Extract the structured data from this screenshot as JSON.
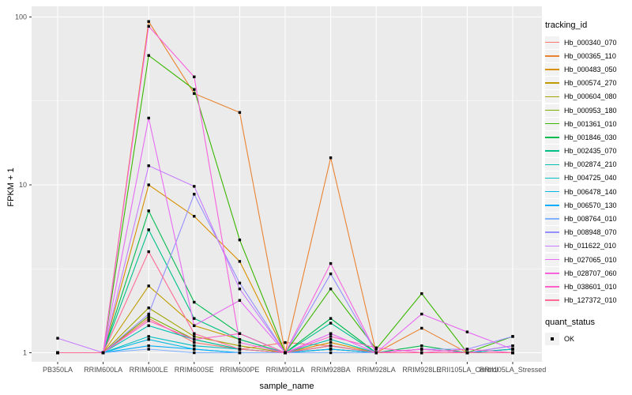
{
  "figure": {
    "y_axis_title": "FPKM + 1",
    "x_axis_title": "sample_name",
    "legend": {
      "tracking_title": "tracking_id",
      "quant_title": "quant_status",
      "quant_items": [
        {
          "label": "OK"
        }
      ]
    }
  },
  "chart_data": {
    "type": "line",
    "title": "",
    "xlabel": "sample_name",
    "ylabel": "FPKM + 1",
    "x_type": "categorical",
    "y_scale": "log10",
    "ylim": [
      0.88,
      116
    ],
    "y_ticks": [
      1,
      10,
      100
    ],
    "y_tick_labels": [
      "1",
      "10",
      "100"
    ],
    "y_minor_ticks": [
      3.162,
      31.62
    ],
    "grid": "on",
    "panel_bg": "#EBEBEB",
    "grid_color": "#FFFFFF",
    "tick_label_color": "#4D4D4D",
    "point_color": "#000000",
    "point_shape": "square",
    "legend_position": "right",
    "categories": [
      "PB350LA",
      "RRIM600LA",
      "RRIM600LE",
      "RRIM600SE",
      "RRIM600PE",
      "RRIM901LA",
      "RRIM928BA",
      "RRIM928LA",
      "RRIM928LE",
      "RRII105LA_Control",
      "RRII105LA_Stressed"
    ],
    "series": [
      {
        "name": "Hb_000340_070",
        "color": "#F8766D",
        "values": [
          1,
          1,
          1.6,
          1.15,
          1.05,
          1.15,
          1.1,
          1,
          1,
          1,
          1.05
        ]
      },
      {
        "name": "Hb_000365_110",
        "color": "#EA8331",
        "values": [
          1,
          1,
          94,
          35,
          27,
          1,
          14.5,
          1,
          1.4,
          1,
          1
        ]
      },
      {
        "name": "Hb_000483_050",
        "color": "#D89000",
        "values": [
          1,
          1,
          10,
          6.5,
          3.5,
          1,
          1.15,
          1,
          1.05,
          1,
          1
        ]
      },
      {
        "name": "Hb_000574_270",
        "color": "#C09B00",
        "values": [
          1,
          1,
          2.5,
          1.45,
          1.2,
          1,
          1.1,
          1,
          1,
          1,
          1
        ]
      },
      {
        "name": "Hb_000604_080",
        "color": "#A3A500",
        "values": [
          1,
          1,
          1.85,
          1.25,
          1.1,
          1,
          1.05,
          1,
          1,
          1,
          1
        ]
      },
      {
        "name": "Hb_000953_180",
        "color": "#7CAE00",
        "values": [
          1,
          1,
          1.65,
          1.2,
          1.05,
          1,
          1.05,
          1,
          1,
          1,
          1
        ]
      },
      {
        "name": "Hb_001361_010",
        "color": "#39B600",
        "values": [
          1,
          1,
          59,
          37,
          4.7,
          1,
          2.4,
          1.05,
          2.25,
          1,
          1.25
        ]
      },
      {
        "name": "Hb_001846_030",
        "color": "#00BB4E",
        "values": [
          1,
          1,
          7,
          2,
          1.3,
          1,
          1.6,
          1,
          1.1,
          1,
          1.05
        ]
      },
      {
        "name": "Hb_002435_070",
        "color": "#00C087",
        "values": [
          1,
          1,
          5.4,
          1.6,
          1.2,
          1,
          1.5,
          1,
          1.05,
          1,
          1
        ]
      },
      {
        "name": "Hb_002874_210",
        "color": "#00C0B2",
        "values": [
          1,
          1,
          1.45,
          1.2,
          1.05,
          1,
          1.2,
          1,
          1,
          1,
          1.1
        ]
      },
      {
        "name": "Hb_004725_040",
        "color": "#00BFC4",
        "values": [
          1,
          1,
          1.25,
          1.1,
          1.05,
          1,
          1.1,
          1,
          1,
          1,
          1.05
        ]
      },
      {
        "name": "Hb_006478_140",
        "color": "#00B8E5",
        "values": [
          1,
          1,
          1.2,
          1.05,
          1,
          1,
          1.05,
          1,
          1,
          1,
          1
        ]
      },
      {
        "name": "Hb_006570_130",
        "color": "#00ACFC",
        "values": [
          1,
          1,
          1.1,
          1.05,
          1,
          1,
          1.05,
          1,
          1,
          1,
          1
        ]
      },
      {
        "name": "Hb_008764_010",
        "color": "#82B1FF",
        "values": [
          1,
          1,
          1.05,
          1,
          1,
          1,
          1,
          1,
          1,
          1,
          1
        ]
      },
      {
        "name": "Hb_008948_070",
        "color": "#9590FF",
        "values": [
          1,
          1,
          1.7,
          8.8,
          2.6,
          1,
          2.95,
          1,
          1.05,
          1.05,
          1.25
        ]
      },
      {
        "name": "Hb_011622_010",
        "color": "#C77CFF",
        "values": [
          1.22,
          1,
          13,
          9.8,
          2.4,
          1,
          1.3,
          1,
          1.05,
          1,
          1.1
        ]
      },
      {
        "name": "Hb_027065_010",
        "color": "#E76BF3",
        "values": [
          1,
          1,
          25,
          1.45,
          2.05,
          1,
          1.3,
          1,
          1.7,
          1.33,
          1.05
        ]
      },
      {
        "name": "Hb_028707_060",
        "color": "#F862DD",
        "values": [
          1,
          1,
          88,
          44,
          1.15,
          1,
          3.4,
          1,
          1.05,
          1,
          1
        ]
      },
      {
        "name": "Hb_038601_010",
        "color": "#FF61C9",
        "values": [
          1,
          1,
          1.55,
          1.2,
          1.3,
          1,
          1.25,
          1.07,
          1,
          1.05,
          1
        ]
      },
      {
        "name": "Hb_127372_010",
        "color": "#FF6B94",
        "values": [
          1,
          1,
          4,
          1.3,
          1.05,
          1,
          1.1,
          1,
          1,
          1,
          1
        ]
      }
    ]
  }
}
